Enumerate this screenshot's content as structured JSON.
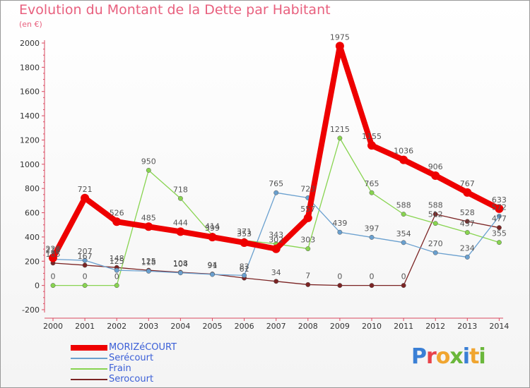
{
  "header": {
    "title": "Evolution du Montant de la Dette par Habitant",
    "unit": "(en €)"
  },
  "logo": {
    "text": "Proxiti",
    "colors": [
      "#3a7fd5",
      "#e8434a",
      "#f0a530",
      "#6ab73b",
      "#3a7fd5",
      "#f0a530",
      "#6ab73b"
    ]
  },
  "chart_data": {
    "type": "line",
    "title": "Evolution du Montant de la Dette par Habitant",
    "ylabel": "(en €)",
    "xlabel": "",
    "x": [
      "2000",
      "2001",
      "2002",
      "2003",
      "2004",
      "2005",
      "2006",
      "2007",
      "2008",
      "2009",
      "2010",
      "2011",
      "2012",
      "2013",
      "2014"
    ],
    "ylim": [
      -200,
      2000
    ],
    "yticks": [
      -200,
      0,
      200,
      400,
      600,
      800,
      1000,
      1200,
      1400,
      1600,
      1800,
      2000
    ],
    "grid": false,
    "legend_position": "bottom-left",
    "series": [
      {
        "name": "MORIZéCOURT",
        "color": "#ee0000",
        "values": [
          228,
          721,
          526,
          485,
          444,
          399,
          353,
          302,
          557,
          1975,
          1155,
          1036,
          906,
          767,
          633
        ],
        "labels": [
          "228",
          "721",
          "526",
          "485",
          "444",
          "399",
          "353",
          "302",
          "557",
          "1975",
          "1155",
          "1036",
          "906",
          "767",
          "633"
        ]
      },
      {
        "name": "Serécourt",
        "color": "#6aa0cf",
        "values": [
          216,
          207,
          125,
          118,
          104,
          91,
          83,
          765,
          723,
          439,
          397,
          354,
          270,
          234,
          572
        ],
        "labels": [
          "216",
          "207",
          "125",
          "118",
          "104",
          "91",
          "83",
          "765",
          "723",
          "439",
          "397",
          "354",
          "270",
          "234",
          "572"
        ]
      },
      {
        "name": "Frain",
        "color": "#88d450",
        "values": [
          0,
          0,
          0,
          950,
          718,
          414,
          371,
          343,
          303,
          1215,
          765,
          588,
          512,
          437,
          355
        ],
        "labels": [
          "0",
          "0",
          "0",
          "950",
          "718",
          "414",
          "371",
          "343",
          "303",
          "1215",
          "765",
          "588",
          "512",
          "437",
          "355"
        ]
      },
      {
        "name": "Serocourt",
        "color": "#7b2424",
        "values": [
          185,
          167,
          148,
          125,
          108,
          94,
          61,
          34,
          7,
          0,
          0,
          0,
          588,
          528,
          477
        ],
        "labels": [
          "185",
          "167",
          "148",
          "125",
          "108",
          "94",
          "61",
          "34",
          "7",
          "0",
          "0",
          "0",
          "588",
          "528",
          "477"
        ]
      }
    ]
  }
}
